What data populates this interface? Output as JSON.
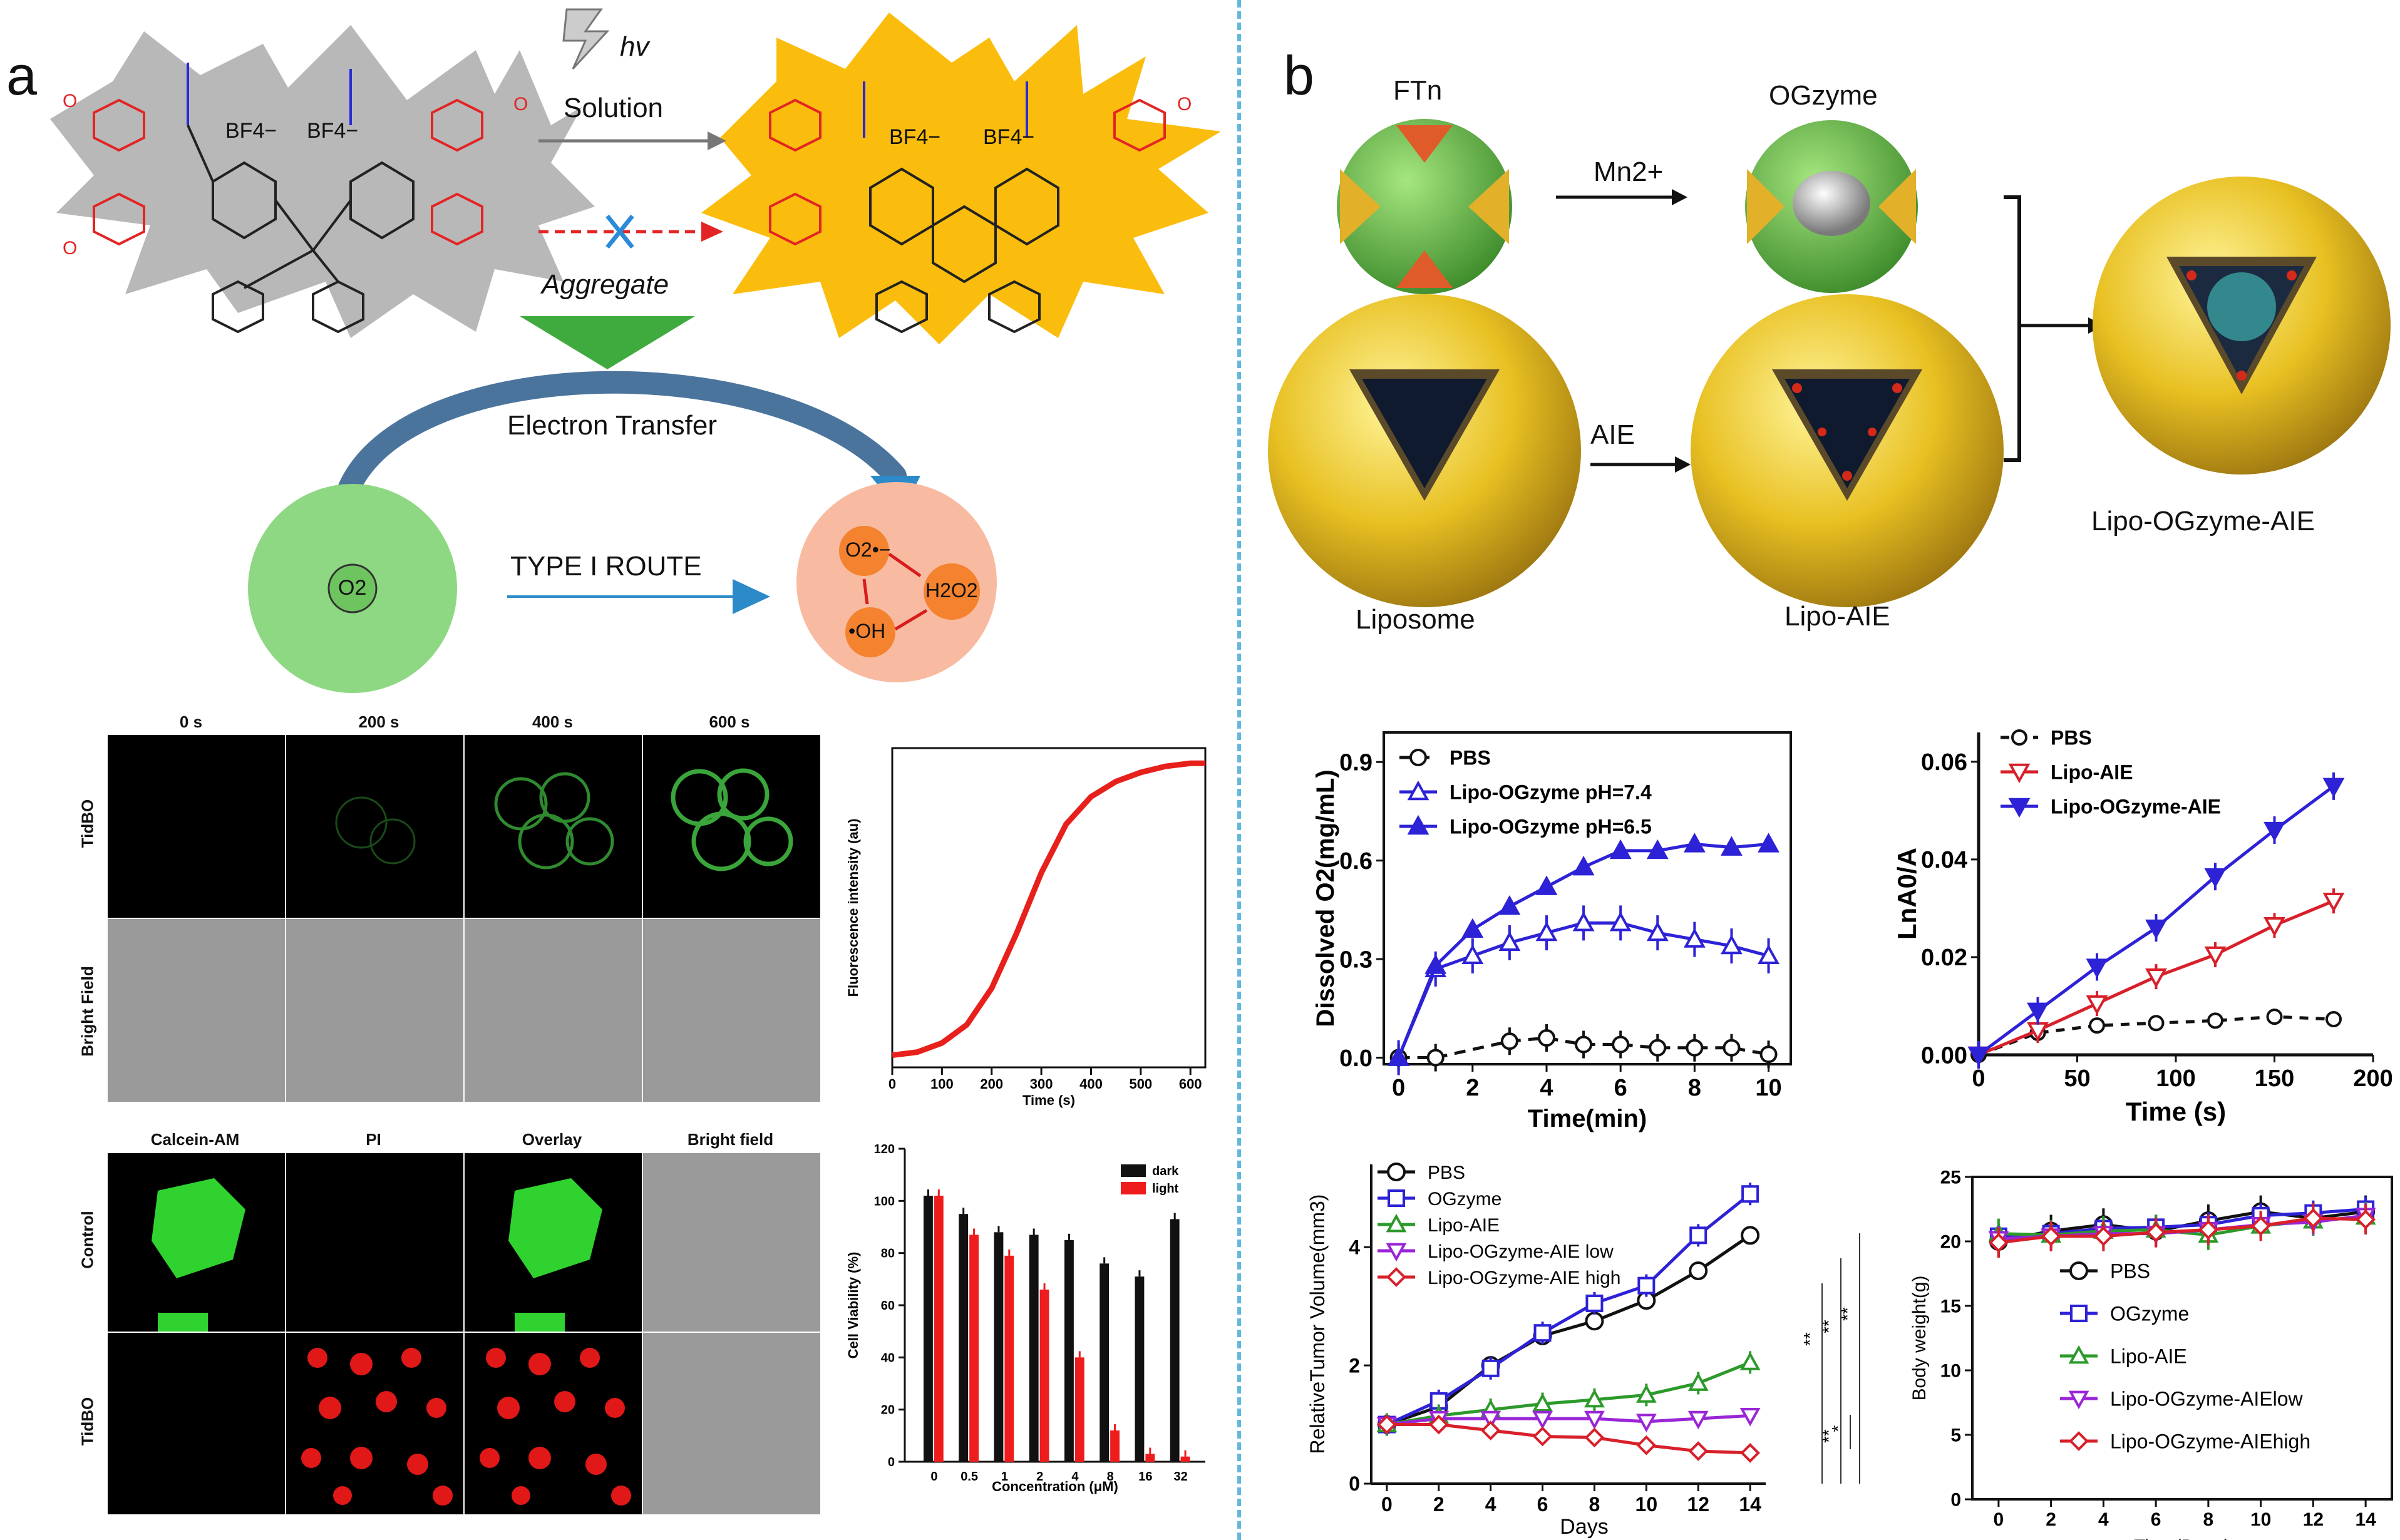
{
  "panels": {
    "a": "a",
    "b": "b"
  },
  "scheme_a": {
    "hv": "hv",
    "solution": "Solution",
    "aggregate": "Aggregate",
    "electron_transfer": "Electron Transfer",
    "type_route": "TYPE I ROUTE",
    "o2": "O2",
    "o2_radical": "O2•−",
    "h2o2": "H2O2",
    "oh": "•OH",
    "bf4": "BF4−",
    "ome": "O"
  },
  "scheme_b": {
    "ftn": "FTn",
    "ogzyme": "OGzyme",
    "mn": "Mn2+",
    "aie": "AIE",
    "liposome": "Liposome",
    "lipo_aie": "Lipo-AIE",
    "lipo_ogzyme_aie": "Lipo-OGzyme-AIE"
  },
  "micro1": {
    "cols": [
      "0 s",
      "200 s",
      "400 s",
      "600 s"
    ],
    "rows": [
      "TidBO",
      "Bright Field"
    ]
  },
  "micro2": {
    "cols": [
      "Calcein-AM",
      "PI",
      "Overlay",
      "Bright field"
    ],
    "rows": [
      "Control",
      "TidBO"
    ]
  },
  "colors": {
    "red": "#e8201c",
    "blue": "#2d22d6",
    "green": "#2c9a2a",
    "purple": "#9a25d6",
    "crimson": "#d8202a",
    "accent": "#63b8dc"
  },
  "chart_data": [
    {
      "id": "fluor",
      "type": "line",
      "xlabel": "Time (s)",
      "ylabel": "Fluorescence intensity (au)",
      "xticks": [
        0,
        100,
        200,
        300,
        400,
        500,
        600
      ],
      "xlim": [
        0,
        630
      ],
      "x": [
        0,
        50,
        100,
        150,
        200,
        250,
        300,
        350,
        400,
        450,
        500,
        550,
        600,
        630
      ],
      "y": [
        0.04,
        0.05,
        0.08,
        0.14,
        0.26,
        0.44,
        0.64,
        0.8,
        0.89,
        0.94,
        0.97,
        0.99,
        1.0,
        1.0
      ]
    },
    {
      "id": "viability",
      "type": "bar",
      "xlabel": "Concentration (μM)",
      "ylabel": "Cell Viability (%)",
      "categories": [
        "0",
        "0.5",
        "1",
        "2",
        "4",
        "8",
        "16",
        "32"
      ],
      "ylim": [
        0,
        120
      ],
      "yticks": [
        0,
        20,
        40,
        60,
        80,
        100,
        120
      ],
      "series": [
        {
          "name": "dark",
          "values": [
            102,
            95,
            88,
            87,
            85,
            76,
            71,
            93
          ]
        },
        {
          "name": "light",
          "values": [
            102,
            87,
            79,
            66,
            40,
            12,
            3,
            2
          ]
        }
      ]
    },
    {
      "id": "o2",
      "type": "line",
      "xlabel": "Time(min)",
      "ylabel": "Dissolved O2(mg/mL)",
      "xlim": [
        0,
        10
      ],
      "ylim": [
        0,
        0.9
      ],
      "xticks": [
        0,
        2,
        4,
        6,
        8,
        10
      ],
      "yticks": [
        "0.0",
        "0.3",
        "0.6",
        "0.9"
      ],
      "series": [
        {
          "name": "PBS",
          "x": [
            0,
            1,
            3,
            4,
            5,
            6,
            7,
            8,
            9,
            10
          ],
          "values": [
            0,
            0,
            0.05,
            0.06,
            0.04,
            0.04,
            0.03,
            0.03,
            0.03,
            0.01
          ]
        },
        {
          "name": "Lipo-OGzyme pH=7.4",
          "x": [
            0,
            1,
            2,
            3,
            4,
            5,
            6,
            7,
            8,
            9,
            10
          ],
          "values": [
            0,
            0.27,
            0.31,
            0.35,
            0.38,
            0.41,
            0.41,
            0.38,
            0.36,
            0.34,
            0.31
          ]
        },
        {
          "name": "Lipo-OGzyme pH=6.5",
          "x": [
            0,
            1,
            2,
            3,
            4,
            5,
            6,
            7,
            8,
            9,
            10
          ],
          "values": [
            0,
            0.28,
            0.39,
            0.46,
            0.52,
            0.58,
            0.63,
            0.63,
            0.65,
            0.64,
            0.65
          ]
        }
      ]
    },
    {
      "id": "lna",
      "type": "line",
      "xlabel": "Time (s)",
      "ylabel": "LnA0/A",
      "xlim": [
        0,
        200
      ],
      "ylim": [
        0,
        0.06
      ],
      "xticks": [
        0,
        50,
        100,
        150,
        200
      ],
      "yticks": [
        "0.00",
        "0.02",
        "0.04",
        "0.06"
      ],
      "series": [
        {
          "name": "PBS",
          "x": [
            0,
            30,
            60,
            90,
            120,
            150,
            180
          ],
          "values": [
            0,
            0.0045,
            0.006,
            0.0065,
            0.007,
            0.0078,
            0.0073
          ]
        },
        {
          "name": "Lipo-AIE",
          "x": [
            0,
            30,
            60,
            90,
            120,
            150,
            180
          ],
          "values": [
            0,
            0.005,
            0.0105,
            0.016,
            0.0205,
            0.0265,
            0.0315
          ]
        },
        {
          "name": "Lipo-OGzyme-AIE",
          "x": [
            0,
            30,
            60,
            90,
            120,
            150,
            180
          ],
          "values": [
            0,
            0.009,
            0.018,
            0.026,
            0.0365,
            0.046,
            0.055
          ]
        }
      ]
    },
    {
      "id": "tumor",
      "type": "line",
      "xlabel": "Days",
      "ylabel": "RelativeTumor Volume(mm3)",
      "xlim": [
        0,
        14
      ],
      "ylim": [
        0,
        5.4
      ],
      "xticks": [
        0,
        2,
        4,
        6,
        8,
        10,
        12,
        14
      ],
      "yticks": [
        0,
        2,
        4
      ],
      "significance": [
        "**",
        "**",
        "**",
        "*",
        "**"
      ],
      "series": [
        {
          "name": "PBS",
          "x": [
            0,
            2,
            4,
            6,
            8,
            10,
            12,
            14
          ],
          "values": [
            1,
            1.3,
            2.0,
            2.5,
            2.75,
            3.1,
            3.6,
            4.2
          ]
        },
        {
          "name": "OGzyme",
          "x": [
            0,
            2,
            4,
            6,
            8,
            10,
            12,
            14
          ],
          "values": [
            1,
            1.4,
            1.95,
            2.55,
            3.05,
            3.35,
            4.2,
            4.9
          ]
        },
        {
          "name": "Lipo-AIE",
          "x": [
            0,
            2,
            4,
            6,
            8,
            10,
            12,
            14
          ],
          "values": [
            1,
            1.15,
            1.25,
            1.35,
            1.42,
            1.5,
            1.7,
            2.05
          ]
        },
        {
          "name": "Lipo-OGzyme-AIE low",
          "x": [
            0,
            2,
            4,
            6,
            8,
            10,
            12,
            14
          ],
          "values": [
            1,
            1.1,
            1.1,
            1.1,
            1.1,
            1.05,
            1.1,
            1.15
          ]
        },
        {
          "name": "Lipo-OGzyme-AIE high",
          "x": [
            0,
            2,
            4,
            6,
            8,
            10,
            12,
            14
          ],
          "values": [
            1,
            1.0,
            0.9,
            0.8,
            0.78,
            0.65,
            0.55,
            0.52
          ]
        }
      ]
    },
    {
      "id": "weight",
      "type": "line",
      "xlabel": "Time(Days)",
      "ylabel": "Body weight(g)",
      "xlim": [
        -1,
        15
      ],
      "ylim": [
        0,
        25
      ],
      "xticks": [
        0,
        2,
        4,
        6,
        8,
        10,
        12,
        14
      ],
      "yticks": [
        0,
        5,
        10,
        15,
        20,
        25
      ],
      "series": [
        {
          "name": "PBS",
          "x": [
            0,
            2,
            4,
            6,
            8,
            10,
            12,
            14
          ],
          "values": [
            20.0,
            20.8,
            21.3,
            20.8,
            21.6,
            22.3,
            21.8,
            22.3
          ]
        },
        {
          "name": "OGzyme",
          "x": [
            0,
            2,
            4,
            6,
            8,
            10,
            12,
            14
          ],
          "values": [
            20.4,
            20.6,
            21.0,
            21.1,
            21.3,
            22.0,
            22.2,
            22.5
          ]
        },
        {
          "name": "Lipo-AIE",
          "x": [
            0,
            2,
            4,
            6,
            8,
            10,
            12,
            14
          ],
          "values": [
            20.6,
            20.5,
            20.8,
            20.9,
            20.5,
            21.2,
            21.6,
            21.9
          ]
        },
        {
          "name": "Lipo-OGzyme-AIElow",
          "x": [
            0,
            2,
            4,
            6,
            8,
            10,
            12,
            14
          ],
          "values": [
            20.2,
            20.4,
            20.6,
            20.6,
            20.9,
            21.3,
            21.5,
            22.0
          ]
        },
        {
          "name": "Lipo-OGzyme-AIEhigh",
          "x": [
            0,
            2,
            4,
            6,
            8,
            10,
            12,
            14
          ],
          "values": [
            19.9,
            20.4,
            20.4,
            20.7,
            20.9,
            21.2,
            21.8,
            21.7
          ]
        }
      ]
    }
  ]
}
